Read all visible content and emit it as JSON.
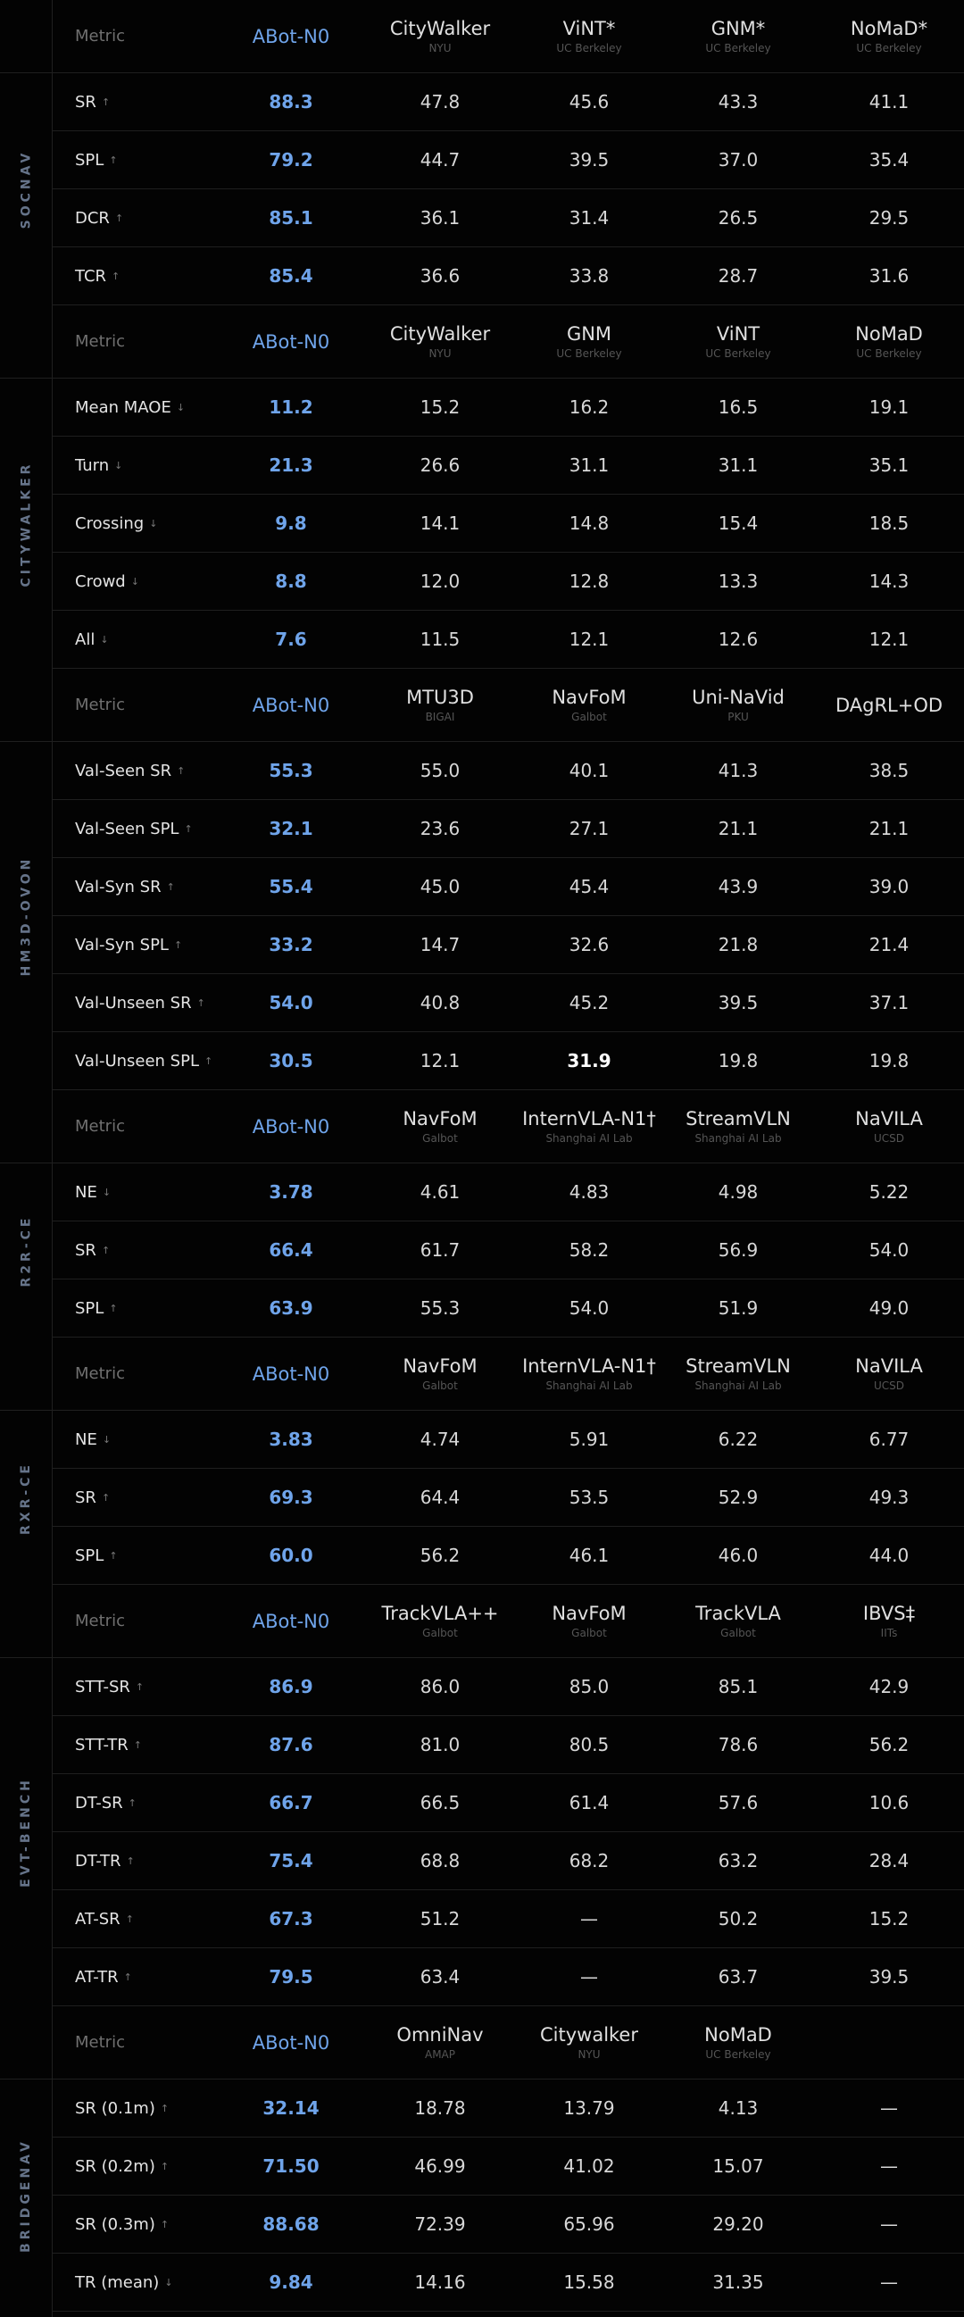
{
  "sections": [
    {
      "label": "SOCNAV",
      "header": {
        "metric": "Metric",
        "models": [
          {
            "name": "ABot-N0"
          },
          {
            "name": "CityWalker",
            "affiliation": "NYU"
          },
          {
            "name": "ViNT*",
            "affiliation": "UC Berkeley"
          },
          {
            "name": "GNM*",
            "affiliation": "UC Berkeley"
          },
          {
            "name": "NoMaD*",
            "affiliation": "UC Berkeley"
          }
        ]
      },
      "rows": [
        {
          "metric": "SR",
          "arrow": "↑",
          "values": [
            "88.3",
            "47.8",
            "45.6",
            "43.3",
            "41.1"
          ]
        },
        {
          "metric": "SPL",
          "arrow": "↑",
          "values": [
            "79.2",
            "44.7",
            "39.5",
            "37.0",
            "35.4"
          ]
        },
        {
          "metric": "DCR",
          "arrow": "↑",
          "values": [
            "85.1",
            "36.1",
            "31.4",
            "26.5",
            "29.5"
          ]
        },
        {
          "metric": "TCR",
          "arrow": "↑",
          "values": [
            "85.4",
            "36.6",
            "33.8",
            "28.7",
            "31.6"
          ]
        }
      ]
    },
    {
      "label": "CITYWALKER",
      "header": {
        "metric": "Metric",
        "models": [
          {
            "name": "ABot-N0"
          },
          {
            "name": "CityWalker",
            "affiliation": "NYU"
          },
          {
            "name": "GNM",
            "affiliation": "UC Berkeley"
          },
          {
            "name": "ViNT",
            "affiliation": "UC Berkeley"
          },
          {
            "name": "NoMaD",
            "affiliation": "UC Berkeley"
          }
        ]
      },
      "rows": [
        {
          "metric": "Mean MAOE",
          "arrow": "↓",
          "values": [
            "11.2",
            "15.2",
            "16.2",
            "16.5",
            "19.1"
          ]
        },
        {
          "metric": "Turn",
          "arrow": "↓",
          "values": [
            "21.3",
            "26.6",
            "31.1",
            "31.1",
            "35.1"
          ]
        },
        {
          "metric": "Crossing",
          "arrow": "↓",
          "values": [
            "9.8",
            "14.1",
            "14.8",
            "15.4",
            "18.5"
          ]
        },
        {
          "metric": "Crowd",
          "arrow": "↓",
          "values": [
            "8.8",
            "12.0",
            "12.8",
            "13.3",
            "14.3"
          ]
        },
        {
          "metric": "All",
          "arrow": "↓",
          "values": [
            "7.6",
            "11.5",
            "12.1",
            "12.6",
            "12.1"
          ]
        }
      ]
    },
    {
      "label": "HM3D-OVON",
      "header": {
        "metric": "Metric",
        "models": [
          {
            "name": "ABot-N0"
          },
          {
            "name": "MTU3D",
            "affiliation": "BIGAI"
          },
          {
            "name": "NavFoM",
            "affiliation": "Galbot"
          },
          {
            "name": "Uni-NaVid",
            "affiliation": "PKU"
          },
          {
            "name": "DAgRL+OD"
          }
        ]
      },
      "rows": [
        {
          "metric": "Val-Seen SR",
          "arrow": "↑",
          "values": [
            "55.3",
            "55.0",
            "40.1",
            "41.3",
            "38.5"
          ]
        },
        {
          "metric": "Val-Seen SPL",
          "arrow": "↑",
          "values": [
            "32.1",
            "23.6",
            "27.1",
            "21.1",
            "21.1"
          ]
        },
        {
          "metric": "Val-Syn SR",
          "arrow": "↑",
          "values": [
            "55.4",
            "45.0",
            "45.4",
            "43.9",
            "39.0"
          ]
        },
        {
          "metric": "Val-Syn SPL",
          "arrow": "↑",
          "values": [
            "33.2",
            "14.7",
            "32.6",
            "21.8",
            "21.4"
          ]
        },
        {
          "metric": "Val-Unseen SR",
          "arrow": "↑",
          "values": [
            "54.0",
            "40.8",
            "45.2",
            "39.5",
            "37.1"
          ]
        },
        {
          "metric": "Val-Unseen SPL",
          "arrow": "↑",
          "values": [
            "30.5",
            "12.1",
            "31.9",
            "19.8",
            "19.8"
          ],
          "highlight": 2
        }
      ]
    },
    {
      "label": "R2R-CE",
      "header": {
        "metric": "Metric",
        "models": [
          {
            "name": "ABot-N0"
          },
          {
            "name": "NavFoM",
            "affiliation": "Galbot"
          },
          {
            "name": "InternVLA-N1†",
            "affiliation": "Shanghai AI Lab"
          },
          {
            "name": "StreamVLN",
            "affiliation": "Shanghai AI Lab"
          },
          {
            "name": "NaVILA",
            "affiliation": "UCSD"
          }
        ]
      },
      "rows": [
        {
          "metric": "NE",
          "arrow": "↓",
          "values": [
            "3.78",
            "4.61",
            "4.83",
            "4.98",
            "5.22"
          ]
        },
        {
          "metric": "SR",
          "arrow": "↑",
          "values": [
            "66.4",
            "61.7",
            "58.2",
            "56.9",
            "54.0"
          ]
        },
        {
          "metric": "SPL",
          "arrow": "↑",
          "values": [
            "63.9",
            "55.3",
            "54.0",
            "51.9",
            "49.0"
          ]
        }
      ]
    },
    {
      "label": "RXR-CE",
      "header": {
        "metric": "Metric",
        "models": [
          {
            "name": "ABot-N0"
          },
          {
            "name": "NavFoM",
            "affiliation": "Galbot"
          },
          {
            "name": "InternVLA-N1†",
            "affiliation": "Shanghai AI Lab"
          },
          {
            "name": "StreamVLN",
            "affiliation": "Shanghai AI Lab"
          },
          {
            "name": "NaVILA",
            "affiliation": "UCSD"
          }
        ]
      },
      "rows": [
        {
          "metric": "NE",
          "arrow": "↓",
          "values": [
            "3.83",
            "4.74",
            "5.91",
            "6.22",
            "6.77"
          ]
        },
        {
          "metric": "SR",
          "arrow": "↑",
          "values": [
            "69.3",
            "64.4",
            "53.5",
            "52.9",
            "49.3"
          ]
        },
        {
          "metric": "SPL",
          "arrow": "↑",
          "values": [
            "60.0",
            "56.2",
            "46.1",
            "46.0",
            "44.0"
          ]
        }
      ]
    },
    {
      "label": "EVT-BENCH",
      "header": {
        "metric": "Metric",
        "models": [
          {
            "name": "ABot-N0"
          },
          {
            "name": "TrackVLA++",
            "affiliation": "Galbot"
          },
          {
            "name": "NavFoM",
            "affiliation": "Galbot"
          },
          {
            "name": "TrackVLA",
            "affiliation": "Galbot"
          },
          {
            "name": "IBVS‡",
            "affiliation": "IITs"
          }
        ]
      },
      "rows": [
        {
          "metric": "STT-SR",
          "arrow": "↑",
          "values": [
            "86.9",
            "86.0",
            "85.0",
            "85.1",
            "42.9"
          ]
        },
        {
          "metric": "STT-TR",
          "arrow": "↑",
          "values": [
            "87.6",
            "81.0",
            "80.5",
            "78.6",
            "56.2"
          ]
        },
        {
          "metric": "DT-SR",
          "arrow": "↑",
          "values": [
            "66.7",
            "66.5",
            "61.4",
            "57.6",
            "10.6"
          ]
        },
        {
          "metric": "DT-TR",
          "arrow": "↑",
          "values": [
            "75.4",
            "68.8",
            "68.2",
            "63.2",
            "28.4"
          ]
        },
        {
          "metric": "AT-SR",
          "arrow": "↑",
          "values": [
            "67.3",
            "51.2",
            "—",
            "50.2",
            "15.2"
          ]
        },
        {
          "metric": "AT-TR",
          "arrow": "↑",
          "values": [
            "79.5",
            "63.4",
            "—",
            "63.7",
            "39.5"
          ]
        }
      ]
    },
    {
      "label": "BRIDGENAV",
      "header": {
        "metric": "Metric",
        "models": [
          {
            "name": "ABot-N0"
          },
          {
            "name": "OmniNav",
            "affiliation": "AMAP"
          },
          {
            "name": "Citywalker",
            "affiliation": "NYU"
          },
          {
            "name": "NoMaD",
            "affiliation": "UC Berkeley"
          }
        ]
      },
      "rows": [
        {
          "metric": "SR (0.1m)",
          "arrow": "↑",
          "values": [
            "32.14",
            "18.78",
            "13.79",
            "4.13",
            "—"
          ]
        },
        {
          "metric": "SR (0.2m)",
          "arrow": "↑",
          "values": [
            "71.50",
            "46.99",
            "41.02",
            "15.07",
            "—"
          ]
        },
        {
          "metric": "SR (0.3m)",
          "arrow": "↑",
          "values": [
            "88.68",
            "72.39",
            "65.96",
            "29.20",
            "—"
          ]
        },
        {
          "metric": "TR (mean)",
          "arrow": "↓",
          "values": [
            "9.84",
            "14.16",
            "15.58",
            "31.35",
            "—"
          ]
        }
      ]
    }
  ]
}
